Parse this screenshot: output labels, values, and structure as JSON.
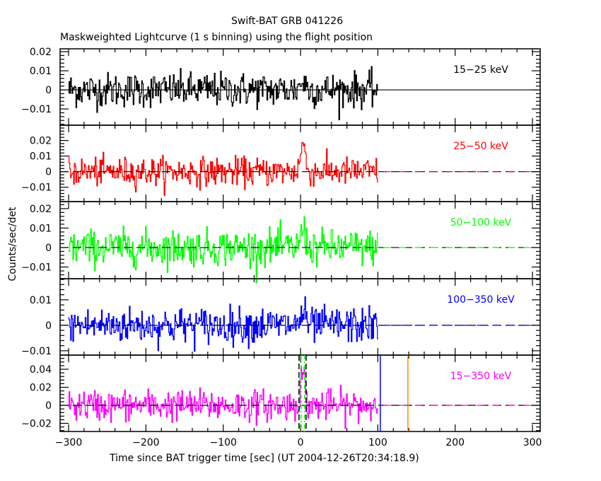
{
  "chart_data": {
    "type": "line",
    "title": "Swift-BAT GRB 041226",
    "subtitle": "Maskweighted Lightcurve (1 s binning) using the flight position",
    "xlabel": "Time since BAT trigger time [sec] (UT 2004-12-26T20:34:18.9)",
    "ylabel": "Counts/sec/det",
    "xlim": [
      -311,
      310
    ],
    "xticks": [
      -300,
      -200,
      -100,
      0,
      100,
      200,
      300
    ],
    "xtick_labels": [
      "−300",
      "−200",
      "−100",
      "0",
      "100",
      "200",
      "300"
    ],
    "grid": false,
    "data_range": [
      -300,
      100
    ],
    "panels": [
      {
        "name": "15–25 keV",
        "label": "15−25 keV",
        "color": "#000000",
        "ylim": [
          -0.0185,
          0.0215
        ],
        "yticks": [
          -0.01,
          0,
          0.01,
          0.02
        ],
        "ytick_labels": [
          "−0.01",
          "0",
          "0.01",
          "0.02"
        ],
        "noise_sigma": 0.0045,
        "peak": {
          "t": 3,
          "amplitude": 0.004,
          "width": 4
        }
      },
      {
        "name": "25–50 keV",
        "label": "25−50 keV",
        "color": "#ff0000",
        "ylim": [
          -0.0192,
          0.0298
        ],
        "yticks": [
          -0.01,
          0,
          0.01,
          0.02
        ],
        "ytick_labels": [
          "−0.01",
          "0",
          "0.01",
          "0.02"
        ],
        "noise_sigma": 0.0045,
        "peak": {
          "t": 3,
          "amplitude": 0.018,
          "width": 3
        }
      },
      {
        "name": "50–100 keV",
        "label": "50−100 keV",
        "color": "#00ff00",
        "ylim": [
          -0.016,
          0.0236
        ],
        "yticks": [
          -0.01,
          0,
          0.01,
          0.02
        ],
        "ytick_labels": [
          "−0.01",
          "0",
          "0.01",
          "0.02"
        ],
        "noise_sigma": 0.0045,
        "peak": {
          "t": 3,
          "amplitude": 0.01,
          "width": 3
        }
      },
      {
        "name": "100–350 keV",
        "label": "100−350 keV",
        "color": "#0000ff",
        "ylim": [
          -0.0117,
          0.0183
        ],
        "yticks": [
          -0.01,
          0,
          0.01
        ],
        "ytick_labels": [
          "−0.01",
          "0",
          "0.01"
        ],
        "noise_sigma": 0.0035,
        "peak": {
          "t": 3,
          "amplitude": 0.005,
          "width": 3
        }
      },
      {
        "name": "15–350 keV",
        "label": "15−350 keV",
        "color": "#ff00ff",
        "ylim": [
          -0.029,
          0.0557
        ],
        "yticks": [
          -0.02,
          0,
          0.02,
          0.04
        ],
        "ytick_labels": [
          "−0.02",
          "0",
          "0.02",
          "0.04"
        ],
        "noise_sigma": 0.0085,
        "peak": {
          "t": 3,
          "amplitude": 0.035,
          "width": 3
        }
      }
    ],
    "annotations": [
      {
        "type": "vline",
        "x": -2.0,
        "color": "#000000",
        "style": "dashed",
        "panel": "15–350 keV"
      },
      {
        "type": "vline",
        "x": 7.2,
        "color": "#000000",
        "style": "dashed",
        "panel": "15–350 keV"
      },
      {
        "type": "vline",
        "x": 0.7,
        "color": "#00ff00",
        "style": "dash-dot",
        "panel": "15–350 keV"
      },
      {
        "type": "vline",
        "x": 5.3,
        "color": "#00ff00",
        "style": "dash-dot",
        "panel": "15–350 keV"
      },
      {
        "type": "vline",
        "x": 103.2,
        "color": "#0000ff",
        "style": "solid",
        "panel": "15–350 keV"
      },
      {
        "type": "vline",
        "x": 138.9,
        "color": "#ff8800",
        "style": "solid",
        "panel": "15–350 keV"
      }
    ]
  }
}
